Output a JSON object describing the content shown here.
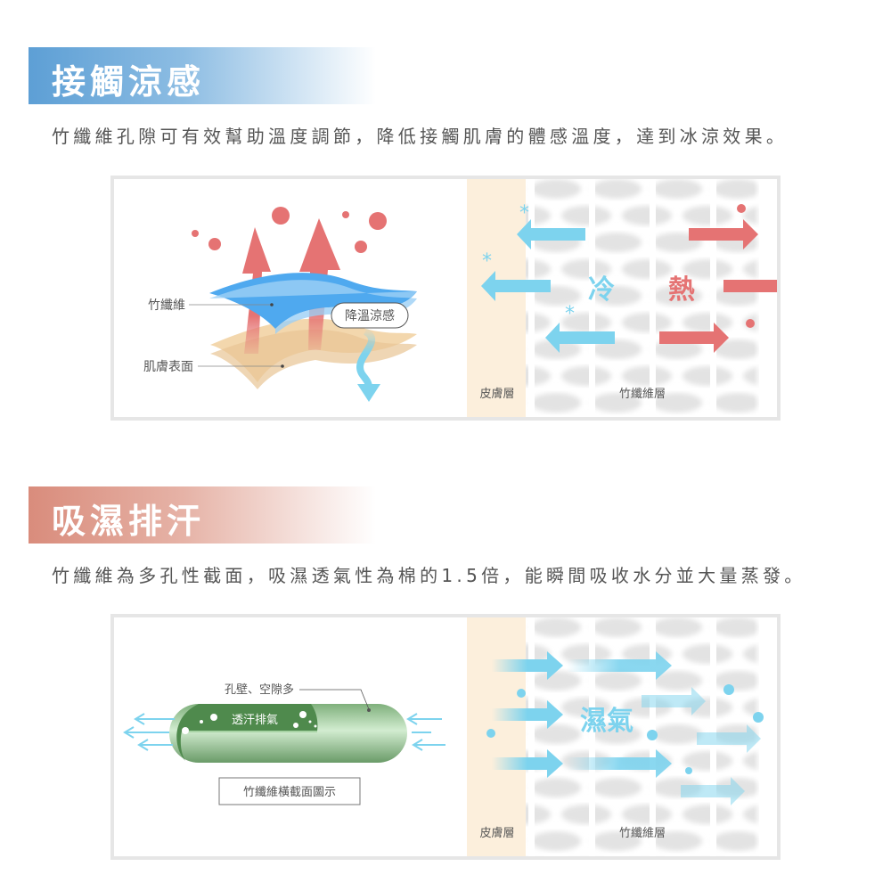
{
  "section1": {
    "title": "接觸涼感",
    "subtitle": "竹纖維孔隙可有效幫助溫度調節，降低接觸肌膚的體感溫度，達到冰涼效果。",
    "accent": "#5d9fd5",
    "diagram": {
      "label_fiber": "竹纖維",
      "label_skin_surface": "肌膚表面",
      "bubble": "降溫涼感",
      "cold": "冷",
      "hot": "熱",
      "skin_layer": "皮膚層",
      "fiber_layer": "竹纖維層",
      "cold_color": "#7dd3ee",
      "hot_color": "#e57373"
    }
  },
  "section2": {
    "title": "吸濕排汗",
    "subtitle": "竹纖維為多孔性截面，吸濕透氣性為棉的1.5倍，能瞬間吸收水分並大量蒸發。",
    "accent": "#d98c7c",
    "diagram": {
      "label_pores": "孔壁、空隙多",
      "label_inside": "透汗排氣",
      "caption": "竹纖維橫截面圖示",
      "moisture": "濕氣",
      "skin_layer": "皮膚層",
      "fiber_layer": "竹纖維層"
    }
  }
}
